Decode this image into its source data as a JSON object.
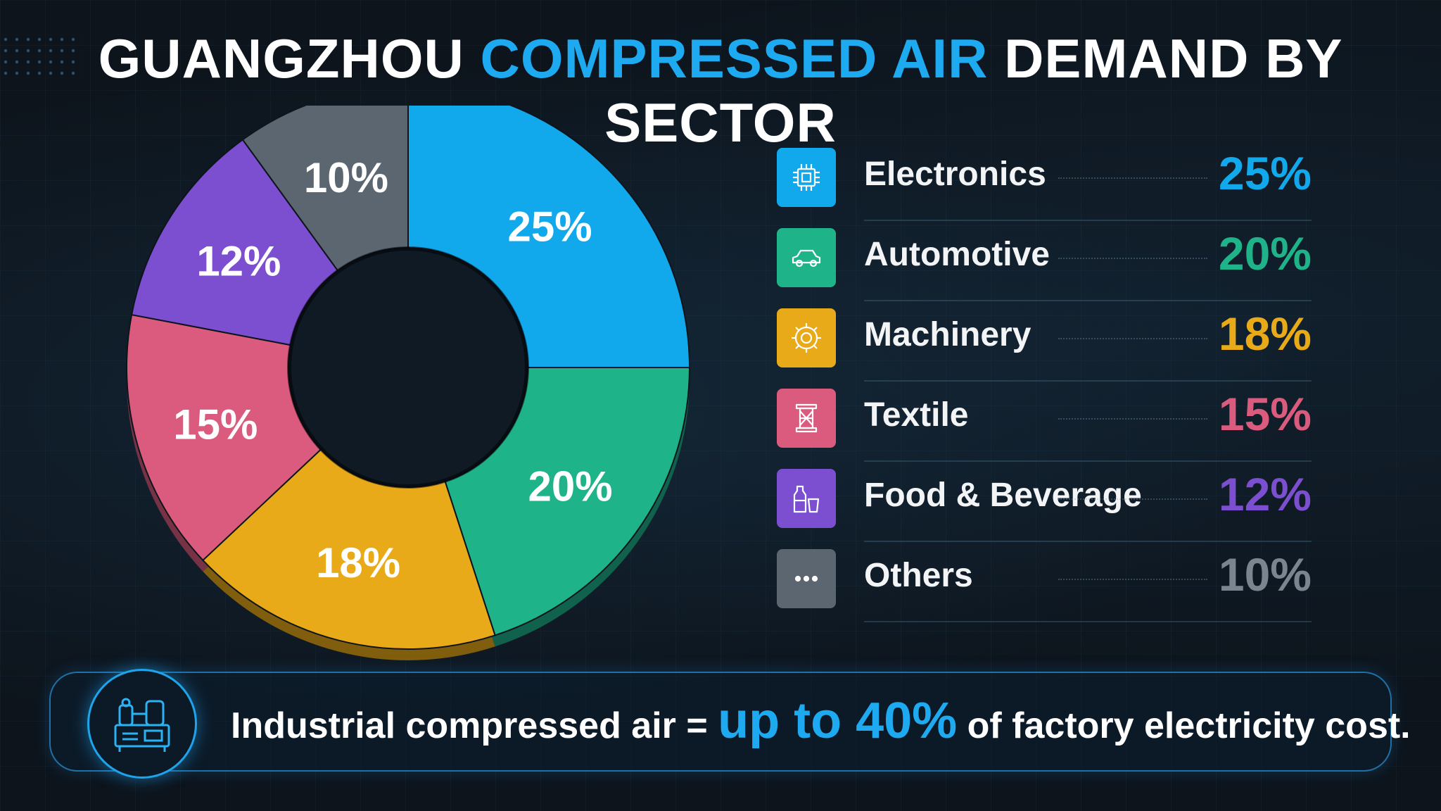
{
  "title": {
    "part1": "GUANGZHOU ",
    "part2": "COMPRESSED AIR",
    "part3": " DEMAND BY SECTOR"
  },
  "colors": {
    "accent": "#1eaaf0",
    "electronics": "#12a8ec",
    "automotive": "#1fb38a",
    "machinery": "#e8aa18",
    "textile": "#db5b7e",
    "food_beverage": "#7b4fd0",
    "others": "#5c6670"
  },
  "chart_data": {
    "type": "pie",
    "style": "donut",
    "title": "GUANGZHOU COMPRESSED AIR DEMAND BY SECTOR",
    "slices": [
      {
        "label": "Electronics",
        "value": 25,
        "display": "25%",
        "color": "#12a8ec",
        "icon": "chip-icon"
      },
      {
        "label": "Automotive",
        "value": 20,
        "display": "20%",
        "color": "#1fb38a",
        "icon": "car-icon"
      },
      {
        "label": "Machinery",
        "value": 18,
        "display": "18%",
        "color": "#e8aa18",
        "icon": "gear-icon"
      },
      {
        "label": "Textile",
        "value": 15,
        "display": "15%",
        "color": "#db5b7e",
        "icon": "thread-spool-icon"
      },
      {
        "label": "Food & Beverage",
        "value": 12,
        "display": "12%",
        "color": "#7b4fd0",
        "icon": "bottle-glass-icon"
      },
      {
        "label": "Others",
        "value": 10,
        "display": "10%",
        "color": "#5c6670",
        "icon": "more-dots-icon"
      }
    ],
    "legend_position": "right"
  },
  "banner": {
    "prefix": "Industrial compressed air = ",
    "highlight": "up to 40%",
    "suffix": " of factory electricity cost.",
    "icon": "air-compressor-icon"
  }
}
